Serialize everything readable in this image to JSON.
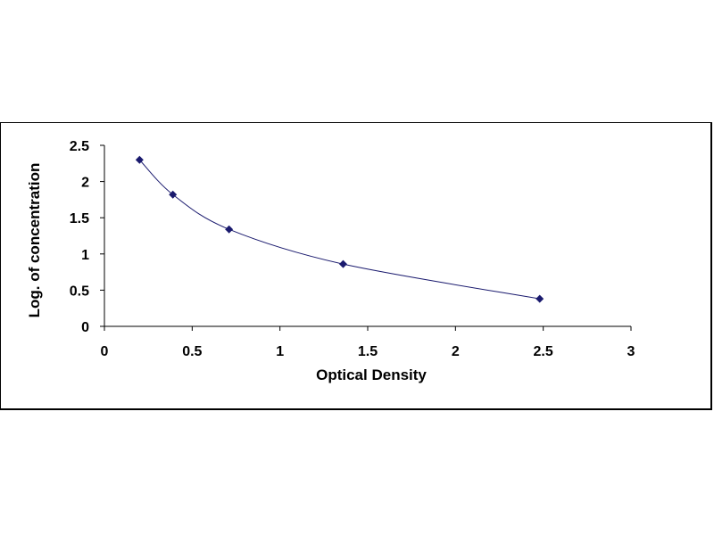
{
  "chart_data": {
    "type": "scatter",
    "title": "",
    "xlabel": "Optical Density",
    "ylabel": "Log. of concentration",
    "xlim": [
      0,
      3
    ],
    "ylim": [
      0,
      2.5
    ],
    "x_ticks": [
      "0",
      "0.5",
      "1",
      "1.5",
      "2",
      "2.5",
      "3"
    ],
    "y_ticks": [
      "0",
      "0.5",
      "1",
      "1.5",
      "2",
      "2.5"
    ],
    "grid": false,
    "legend": "none",
    "trendline": "smooth curve",
    "colors": {
      "marker": "#1a1a6e",
      "line": "#1a1a6e",
      "axis": "#000000"
    },
    "series": [
      {
        "x": [
          0.2,
          0.39,
          0.71,
          1.36,
          2.48
        ],
        "y": [
          2.3,
          1.82,
          1.34,
          0.86,
          0.38
        ]
      }
    ]
  }
}
